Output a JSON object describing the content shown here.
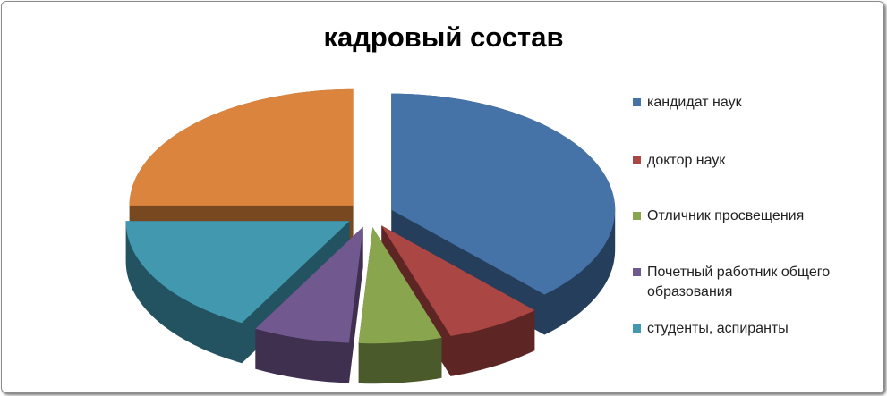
{
  "chart_data": {
    "type": "pie",
    "title": "кадровый состав",
    "categories": [
      "кандидат наук",
      "доктор наук",
      "Отличник просвещения",
      "Почетный работник общего образования",
      "студенты, аспиранты",
      null
    ],
    "values": [
      38,
      7,
      6,
      7,
      17,
      25
    ],
    "colors": [
      "#4572a7",
      "#aa4643",
      "#89a54e",
      "#71588f",
      "#4198af",
      "#db843d"
    ],
    "legend": "right"
  }
}
